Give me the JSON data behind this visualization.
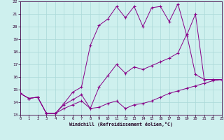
{
  "xlabel": "Windchill (Refroidissement éolien,°C)",
  "xlim": [
    0,
    23
  ],
  "ylim": [
    13,
    22
  ],
  "yticks": [
    13,
    14,
    15,
    16,
    17,
    18,
    19,
    20,
    21,
    22
  ],
  "xticks": [
    0,
    1,
    2,
    3,
    4,
    5,
    6,
    7,
    8,
    9,
    10,
    11,
    12,
    13,
    14,
    15,
    16,
    17,
    18,
    19,
    20,
    21,
    22,
    23
  ],
  "bg_color": "#cef0ee",
  "grid_color": "#aad8d8",
  "line_color": "#880088",
  "series": [
    {
      "x": [
        0,
        1,
        2,
        3,
        4,
        5,
        6,
        7,
        8,
        9,
        10,
        11,
        12,
        13,
        14,
        15,
        16,
        17,
        18,
        19,
        20,
        21,
        22,
        23
      ],
      "y": [
        14.7,
        14.3,
        14.4,
        13.1,
        13.1,
        13.5,
        13.8,
        14.1,
        13.5,
        13.6,
        13.9,
        14.1,
        13.5,
        13.8,
        13.9,
        14.1,
        14.4,
        14.7,
        14.9,
        15.1,
        15.3,
        15.5,
        15.7,
        15.8
      ]
    },
    {
      "x": [
        0,
        1,
        2,
        3,
        4,
        5,
        6,
        7,
        8,
        9,
        10,
        11,
        12,
        13,
        14,
        15,
        16,
        17,
        18,
        19,
        20,
        21,
        22,
        23
      ],
      "y": [
        14.7,
        14.3,
        14.4,
        13.1,
        13.1,
        13.8,
        14.2,
        14.6,
        13.5,
        15.2,
        16.1,
        17.0,
        16.3,
        16.8,
        16.6,
        16.9,
        17.2,
        17.5,
        17.9,
        19.4,
        16.2,
        15.8,
        15.8,
        15.8
      ]
    },
    {
      "x": [
        0,
        1,
        2,
        3,
        4,
        5,
        6,
        7,
        8,
        9,
        10,
        11,
        12,
        13,
        14,
        15,
        16,
        17,
        18,
        19,
        20,
        21,
        22,
        23
      ],
      "y": [
        14.7,
        14.3,
        14.4,
        13.1,
        13.1,
        13.9,
        14.8,
        15.2,
        18.5,
        20.1,
        20.6,
        21.6,
        20.7,
        21.6,
        20.0,
        21.5,
        21.6,
        20.4,
        21.8,
        19.3,
        21.0,
        15.8,
        15.8,
        15.8
      ]
    }
  ]
}
